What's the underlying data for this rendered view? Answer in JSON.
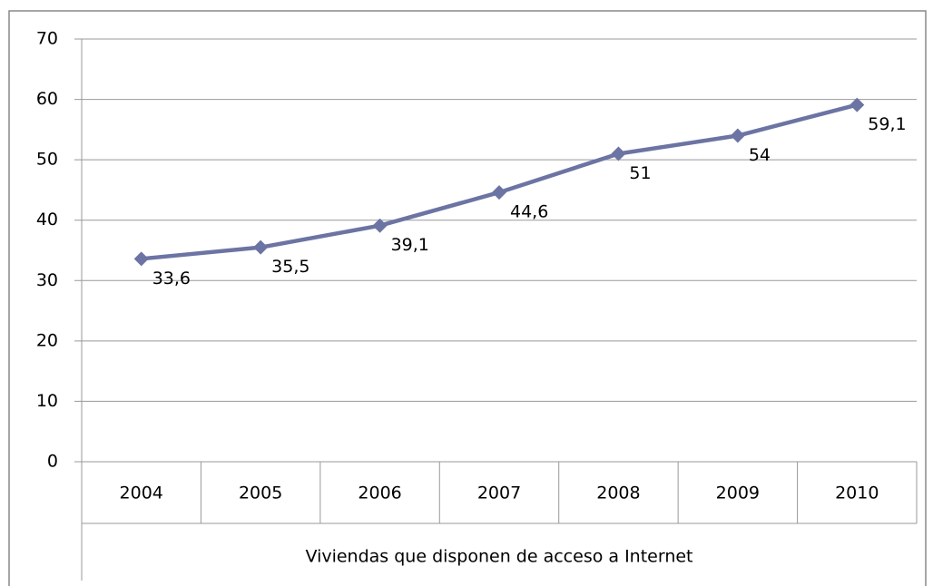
{
  "chart_data": {
    "type": "line",
    "categories": [
      "2004",
      "2005",
      "2006",
      "2007",
      "2008",
      "2009",
      "2010"
    ],
    "series": [
      {
        "name": "Viviendas que disponen de acceso a Internet",
        "color": "#6b74a3",
        "values": [
          33.6,
          35.5,
          39.1,
          44.6,
          51,
          54,
          59.1
        ],
        "value_labels": [
          "33,6",
          "35,5",
          "39,1",
          "44,6",
          "51",
          "54",
          "59,1"
        ]
      }
    ],
    "ylim": [
      0,
      70
    ],
    "yticks": [
      0,
      10,
      20,
      30,
      40,
      50,
      60,
      70
    ],
    "grid": true
  }
}
